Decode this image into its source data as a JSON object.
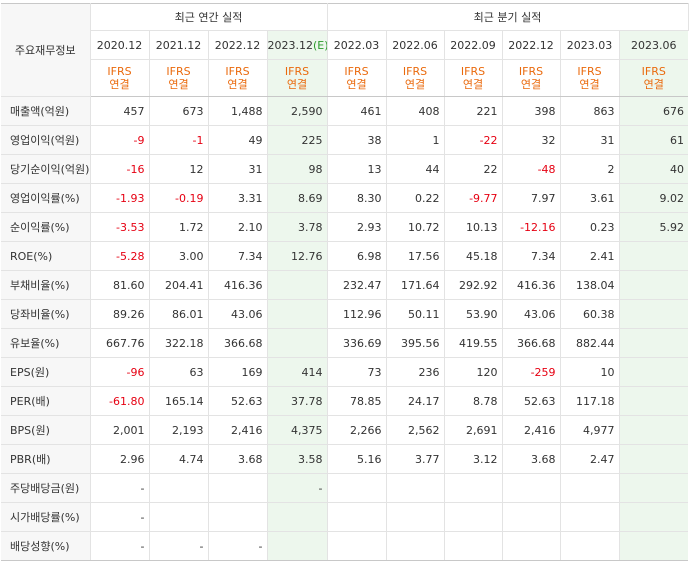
{
  "header": {
    "row_title": "주요재무정보",
    "annual_group": "최근 연간 실적",
    "quarter_group": "최근 분기 실적",
    "periods": [
      "2020.12",
      "2021.12",
      "2022.12",
      "2023.12",
      "2022.03",
      "2022.06",
      "2022.09",
      "2022.12",
      "2023.03",
      "2023.06"
    ],
    "estimate_mark": "(E)",
    "ifrs_line1": "IFRS",
    "ifrs_line2": "연결"
  },
  "rows": [
    {
      "label": "매출액(억원)",
      "values": [
        "457",
        "673",
        "1,488",
        "2,590",
        "461",
        "408",
        "221",
        "398",
        "863",
        "676"
      ]
    },
    {
      "label": "영업이익(억원)",
      "values": [
        "-9",
        "-1",
        "49",
        "225",
        "38",
        "1",
        "-22",
        "32",
        "31",
        "61"
      ]
    },
    {
      "label": "당기순이익(억원)",
      "values": [
        "-16",
        "12",
        "31",
        "98",
        "13",
        "44",
        "22",
        "-48",
        "2",
        "40"
      ]
    },
    {
      "label": "영업이익률(%)",
      "values": [
        "-1.93",
        "-0.19",
        "3.31",
        "8.69",
        "8.30",
        "0.22",
        "-9.77",
        "7.97",
        "3.61",
        "9.02"
      ]
    },
    {
      "label": "순이익률(%)",
      "values": [
        "-3.53",
        "1.72",
        "2.10",
        "3.78",
        "2.93",
        "10.72",
        "10.13",
        "-12.16",
        "0.23",
        "5.92"
      ]
    },
    {
      "label": "ROE(%)",
      "values": [
        "-5.28",
        "3.00",
        "7.34",
        "12.76",
        "6.98",
        "17.56",
        "45.18",
        "7.34",
        "2.41",
        ""
      ]
    },
    {
      "label": "부채비율(%)",
      "values": [
        "81.60",
        "204.41",
        "416.36",
        "",
        "232.47",
        "171.64",
        "292.92",
        "416.36",
        "138.04",
        ""
      ]
    },
    {
      "label": "당좌비율(%)",
      "values": [
        "89.26",
        "86.01",
        "43.06",
        "",
        "112.96",
        "50.11",
        "53.90",
        "43.06",
        "60.38",
        ""
      ]
    },
    {
      "label": "유보율(%)",
      "values": [
        "667.76",
        "322.18",
        "366.68",
        "",
        "336.69",
        "395.56",
        "419.55",
        "366.68",
        "882.44",
        ""
      ]
    },
    {
      "label": "EPS(원)",
      "values": [
        "-96",
        "63",
        "169",
        "414",
        "73",
        "236",
        "120",
        "-259",
        "10",
        ""
      ]
    },
    {
      "label": "PER(배)",
      "values": [
        "-61.80",
        "165.14",
        "52.63",
        "37.78",
        "78.85",
        "24.17",
        "8.78",
        "52.63",
        "117.18",
        ""
      ]
    },
    {
      "label": "BPS(원)",
      "values": [
        "2,001",
        "2,193",
        "2,416",
        "4,375",
        "2,266",
        "2,562",
        "2,691",
        "2,416",
        "4,977",
        ""
      ]
    },
    {
      "label": "PBR(배)",
      "values": [
        "2.96",
        "4.74",
        "3.68",
        "3.58",
        "5.16",
        "3.77",
        "3.12",
        "3.68",
        "2.47",
        ""
      ]
    },
    {
      "label": "주당배당금(원)",
      "values": [
        "-",
        "",
        "",
        "-",
        "",
        "",
        "",
        "",
        "",
        ""
      ]
    },
    {
      "label": "시가배당률(%)",
      "values": [
        "-",
        "",
        "",
        "",
        "",
        "",
        "",
        "",
        "",
        ""
      ]
    },
    {
      "label": "배당성향(%)",
      "values": [
        "-",
        "-",
        "-",
        "",
        "",
        "",
        "",
        "",
        "",
        ""
      ]
    }
  ]
}
